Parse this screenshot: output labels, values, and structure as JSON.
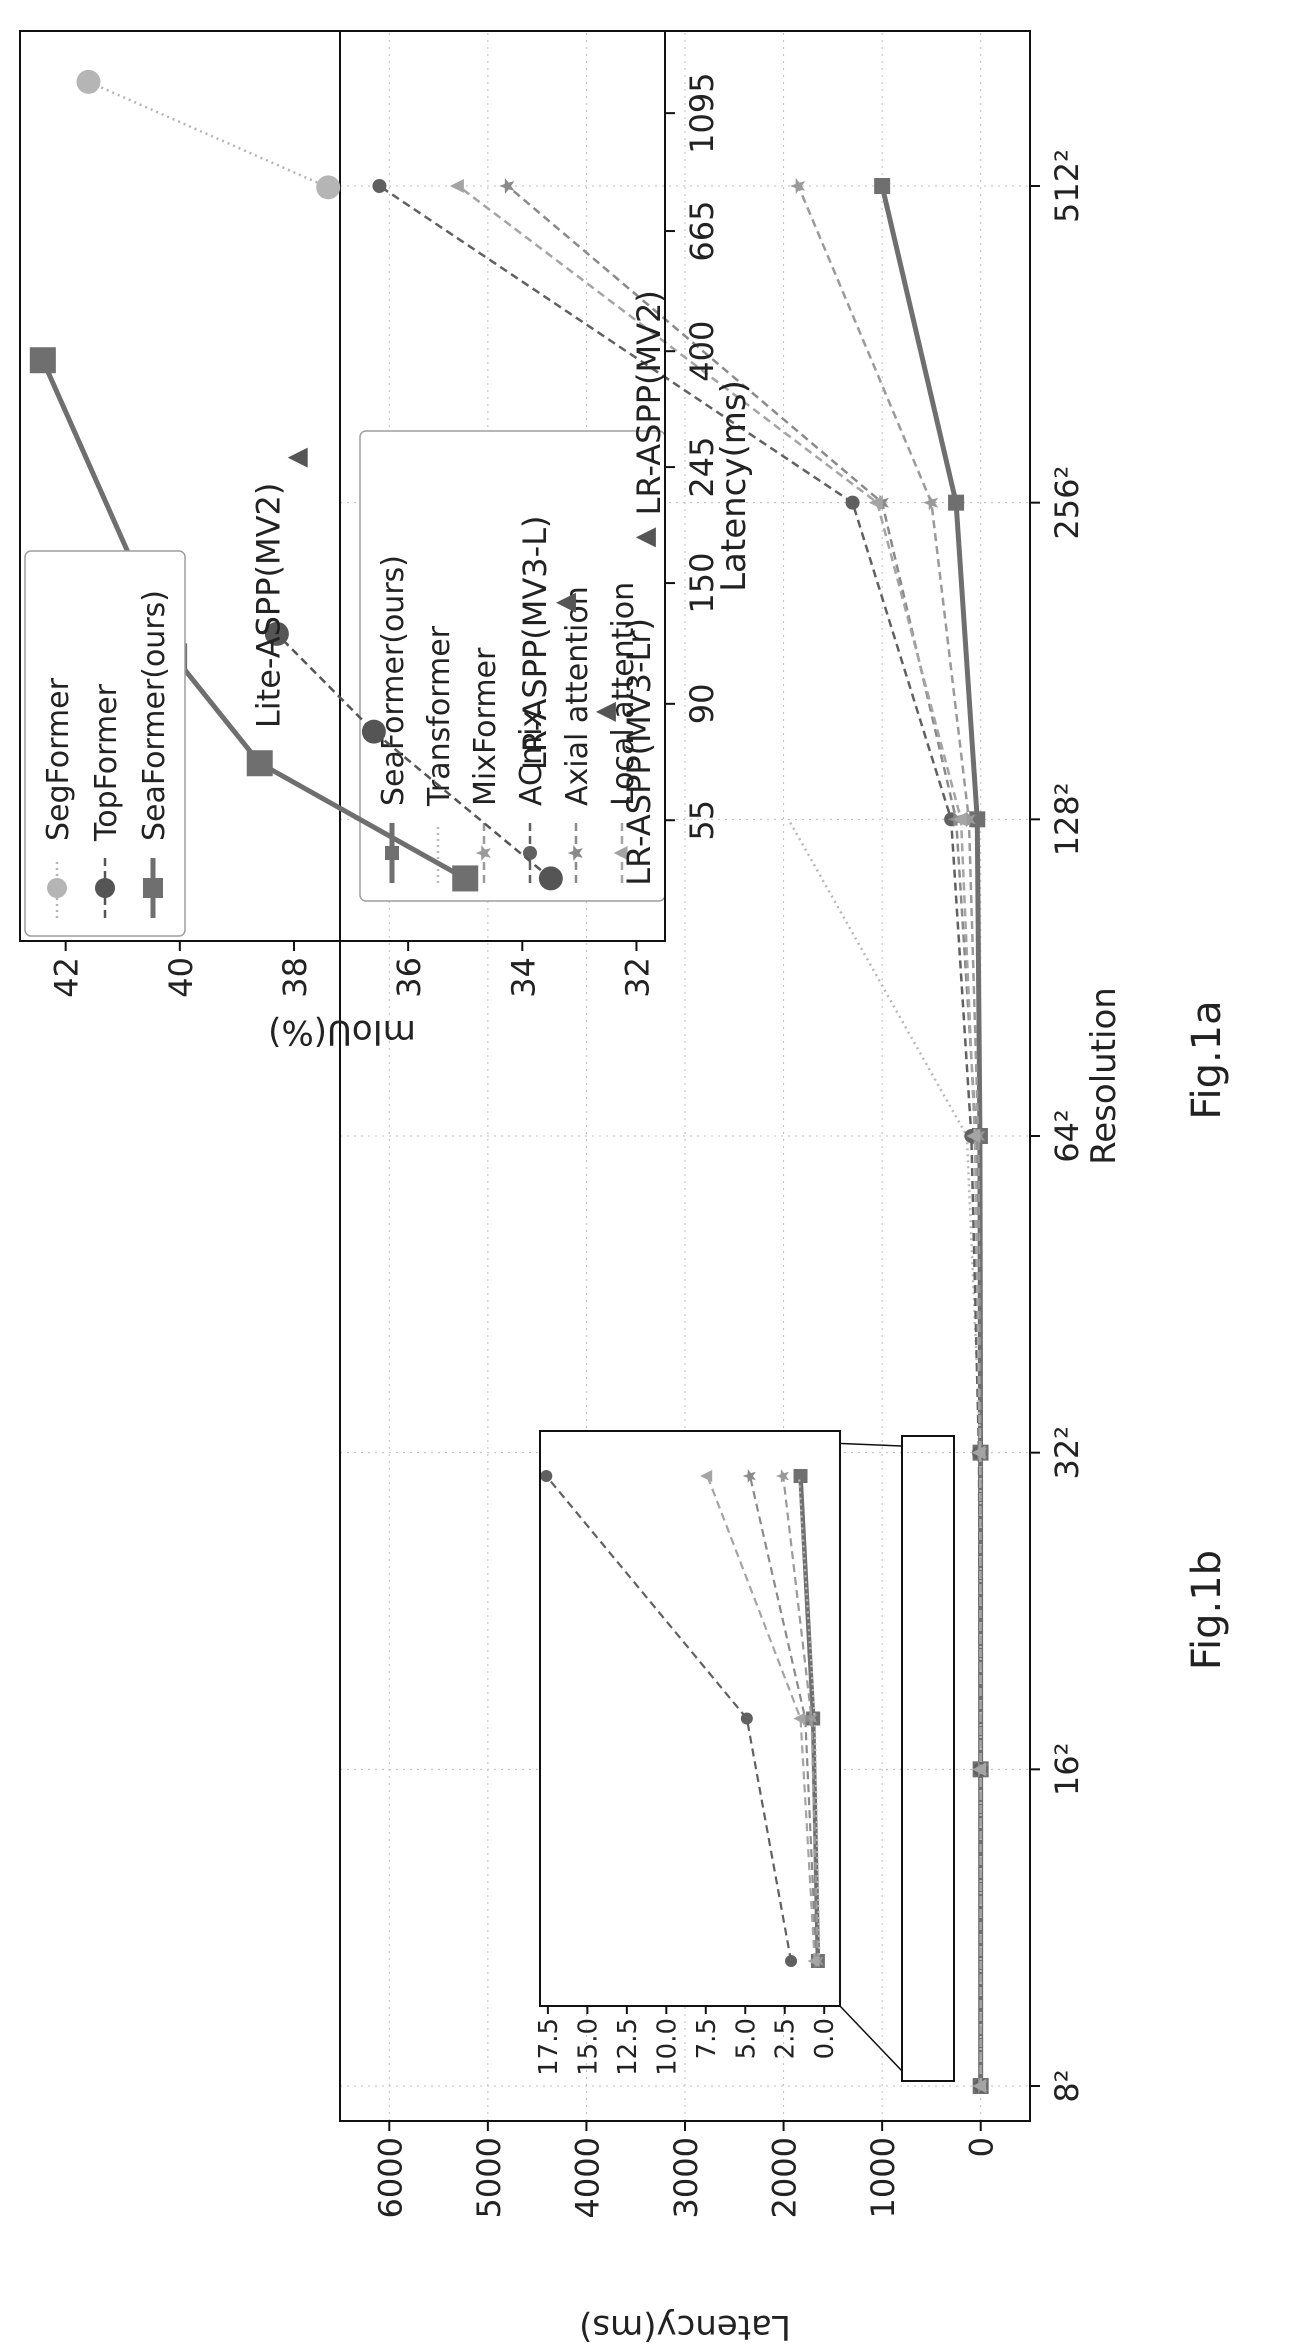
{
  "chart_data": [
    {
      "id": "fig1a",
      "type": "line",
      "caption": "Fig.1a",
      "title": "",
      "xlabel": "Resolution",
      "ylabel": "Latency(ms)",
      "categories": [
        "8²",
        "16²",
        "32²",
        "64²",
        "128²",
        "256²",
        "512²"
      ],
      "ylim": [
        -500,
        6500
      ],
      "yticks": [
        "0",
        "1000",
        "2000",
        "3000",
        "4000",
        "5000",
        "6000"
      ],
      "grid": true,
      "legend_position": "top-left",
      "series": [
        {
          "name": "SeaFormer(ours)",
          "color": "#6f6f6f",
          "dash": "",
          "marker": "square",
          "values": [
            0.4,
            0.7,
            1.5,
            8,
            35,
            250,
            1000
          ]
        },
        {
          "name": "Transformer",
          "color": "#b8b8b8",
          "dash": "2 4",
          "marker": "none",
          "values": [
            0.3,
            0.6,
            1.6,
            140,
            1950,
            null,
            null
          ]
        },
        {
          "name": "MixFormer",
          "color": "#9a9a9a",
          "dash": "8 5",
          "marker": "star",
          "values": [
            0.4,
            0.8,
            2.6,
            25,
            120,
            500,
            1850
          ]
        },
        {
          "name": "ACmix",
          "color": "#606060",
          "dash": "8 5",
          "marker": "circle",
          "values": [
            2.1,
            4.9,
            17.6,
            95,
            300,
            1300,
            6100
          ]
        },
        {
          "name": "Axial attention",
          "color": "#8a8a8a",
          "dash": "8 5",
          "marker": "star",
          "values": [
            0.5,
            1.2,
            4.7,
            45,
            250,
            1000,
            4800
          ]
        },
        {
          "name": "Local attention",
          "color": "#a4a4a4",
          "dash": "8 5",
          "marker": "triangle",
          "values": [
            0.6,
            1.5,
            7.4,
            60,
            200,
            1050,
            5300
          ]
        }
      ],
      "inset": {
        "categories": [
          "8²",
          "16²",
          "32²"
        ],
        "ylim": [
          -1,
          18
        ],
        "yticks": [
          "0.0",
          "2.5",
          "5.0",
          "7.5",
          "10.0",
          "12.5",
          "15.0",
          "17.5"
        ]
      }
    },
    {
      "id": "fig1b",
      "type": "scatter",
      "caption": "Fig.1b",
      "title": "",
      "xlabel": "Latency(ms)",
      "ylabel": "mIoU(%)",
      "xscale": "log",
      "xlim": [
        33,
        1550
      ],
      "xticks": [
        55,
        90,
        150,
        245,
        400,
        665,
        1095
      ],
      "ylim": [
        31.5,
        42.8
      ],
      "yticks": [
        32,
        34,
        36,
        38,
        40,
        42
      ],
      "grid": false,
      "legend_position": "top-left",
      "series": [
        {
          "name": "SegFormer",
          "color": "#b5b5b5",
          "dash": "2 4",
          "marker": "circle",
          "x": [
            800,
            1250
          ],
          "y": [
            37.4,
            41.6
          ]
        },
        {
          "name": "TopFormer",
          "color": "#555555",
          "dash": "8 5",
          "marker": "circle",
          "x": [
            43,
            80,
            121
          ],
          "y": [
            33.5,
            36.6,
            38.3
          ]
        },
        {
          "name": "SeaFormer(ours)",
          "color": "#6f6f6f",
          "dash": "",
          "marker": "square",
          "x": [
            43,
            70,
            110,
            385
          ],
          "y": [
            35.0,
            38.6,
            40.1,
            42.4
          ]
        }
      ],
      "points": [
        {
          "label": "Lite-ASPP(MV2)",
          "x": 255,
          "y": 37.9
        },
        {
          "label": "LR-ASPP(MV3-L)",
          "x": 138,
          "y": 33.2
        },
        {
          "label": "LR-ASPP(MV3-Lr)",
          "x": 87,
          "y": 32.5
        },
        {
          "label": "LR-ASPP(MV2)",
          "x": 182,
          "y": 31.8
        }
      ]
    }
  ]
}
